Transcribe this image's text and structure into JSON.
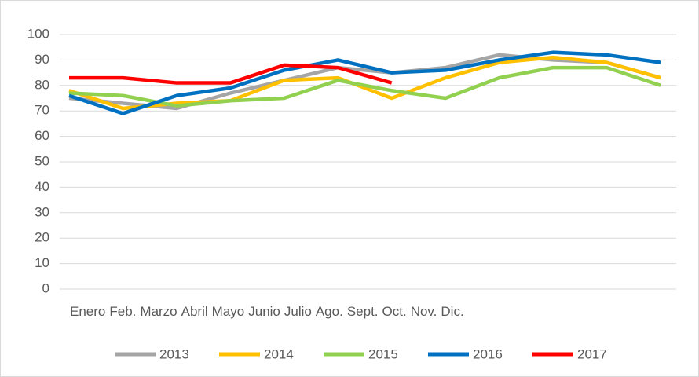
{
  "chart_data": {
    "type": "line",
    "categories": [
      "Enero",
      "Feb.",
      "Marzo",
      "Abril",
      "Mayo",
      "Junio",
      "Julio",
      "Ago.",
      "Sept.",
      "Oct.",
      "Nov.",
      "Dic."
    ],
    "series": [
      {
        "name": "2013",
        "color": "#a5a5a5",
        "values": [
          75,
          73,
          71,
          77,
          82,
          87,
          85,
          87,
          92,
          90,
          89,
          83
        ]
      },
      {
        "name": "2014",
        "color": "#ffc000",
        "values": [
          78,
          71,
          73,
          74,
          82,
          83,
          75,
          83,
          89,
          91,
          89,
          83
        ]
      },
      {
        "name": "2015",
        "color": "#92d050",
        "values": [
          77,
          76,
          72,
          74,
          75,
          82,
          78,
          75,
          83,
          87,
          87,
          80
        ]
      },
      {
        "name": "2016",
        "color": "#0070c0",
        "values": [
          76,
          69,
          76,
          79,
          86,
          90,
          85,
          86,
          90,
          93,
          92,
          89
        ]
      },
      {
        "name": "2017",
        "color": "#ff0000",
        "values": [
          83,
          83,
          81,
          81,
          88,
          87,
          81,
          null,
          null,
          null,
          null,
          null
        ]
      }
    ],
    "ylim": [
      0,
      100
    ],
    "yticks": [
      0,
      10,
      20,
      30,
      40,
      50,
      60,
      70,
      80,
      90,
      100
    ],
    "grid": true
  }
}
